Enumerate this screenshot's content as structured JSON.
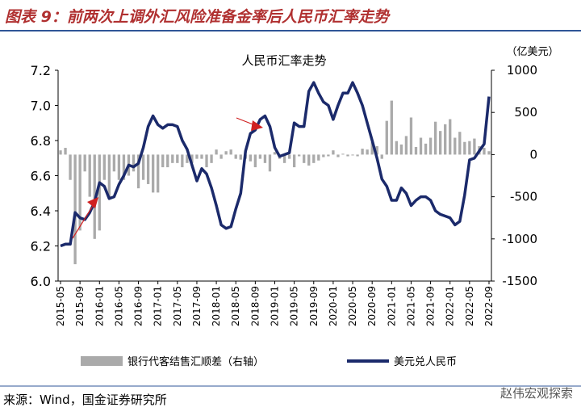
{
  "header": {
    "title": "图表 9：前两次上调外汇风险准备金率后人民币汇率走势"
  },
  "chart_data": {
    "type": "bar-line",
    "title": "人民币汇率走势",
    "y2_label": "（亿美元）",
    "categories": [
      "2015-05",
      null,
      null,
      null,
      "2015-09",
      null,
      null,
      null,
      "2016-01",
      null,
      null,
      null,
      "2016-05",
      null,
      null,
      null,
      "2016-09",
      null,
      null,
      null,
      "2017-01",
      null,
      null,
      null,
      "2017-05",
      null,
      null,
      null,
      "2017-09",
      null,
      null,
      null,
      "2018-01",
      null,
      null,
      null,
      "2018-05",
      null,
      null,
      null,
      "2018-09",
      null,
      null,
      null,
      "2019-01",
      null,
      null,
      null,
      "2019-05",
      null,
      null,
      null,
      "2019-09",
      null,
      null,
      null,
      "2020-01",
      null,
      null,
      null,
      "2020-05",
      null,
      null,
      null,
      "2020-09",
      null,
      null,
      null,
      "2021-01",
      null,
      null,
      null,
      "2021-05",
      null,
      null,
      null,
      "2021-09",
      null,
      null,
      null,
      "2022-01",
      null,
      null,
      null,
      "2022-05",
      null,
      null,
      null,
      "2022-09"
    ],
    "series": [
      {
        "name": "银行代客结售汇顺差（右轴）",
        "color": "#aaaaaa",
        "axis": "y2",
        "kind": "bar",
        "values": [
          50,
          80,
          -300,
          -1300,
          -900,
          -200,
          -500,
          -1000,
          -900,
          -300,
          -500,
          -200,
          -300,
          -300,
          -250,
          -200,
          -400,
          -300,
          -350,
          -450,
          -450,
          -150,
          -150,
          -100,
          -100,
          -150,
          -100,
          -100,
          -50,
          -50,
          -150,
          -100,
          60,
          -50,
          40,
          60,
          -50,
          -60,
          -50,
          -80,
          -150,
          -50,
          -100,
          -200,
          30,
          -50,
          -100,
          -50,
          -150,
          -20,
          -100,
          -130,
          -100,
          -70,
          -30,
          -20,
          50,
          -30,
          10,
          -20,
          -10,
          -20,
          70,
          60,
          150,
          100,
          -50,
          400,
          640,
          160,
          120,
          220,
          440,
          90,
          200,
          130,
          200,
          390,
          280,
          360,
          420,
          200,
          270,
          150,
          160,
          190,
          100,
          80,
          40
        ]
      },
      {
        "name": "美元兑人民币",
        "color": "#1b2a6b",
        "axis": "y",
        "kind": "line",
        "values": [
          6.2,
          6.21,
          6.21,
          6.39,
          6.36,
          6.35,
          6.39,
          6.45,
          6.56,
          6.54,
          6.47,
          6.48,
          6.55,
          6.6,
          6.66,
          6.65,
          6.67,
          6.76,
          6.88,
          6.94,
          6.89,
          6.87,
          6.89,
          6.89,
          6.88,
          6.8,
          6.75,
          6.66,
          6.57,
          6.64,
          6.61,
          6.53,
          6.43,
          6.32,
          6.3,
          6.31,
          6.41,
          6.5,
          6.74,
          6.84,
          6.86,
          6.92,
          6.94,
          6.88,
          6.76,
          6.71,
          6.72,
          6.73,
          6.9,
          6.88,
          6.88,
          7.08,
          7.13,
          7.07,
          7.02,
          7.0,
          6.92,
          7.0,
          7.07,
          7.07,
          7.13,
          7.07,
          7.0,
          6.9,
          6.8,
          6.7,
          6.58,
          6.54,
          6.46,
          6.46,
          6.53,
          6.5,
          6.43,
          6.46,
          6.48,
          6.48,
          6.46,
          6.4,
          6.38,
          6.37,
          6.36,
          6.32,
          6.34,
          6.49,
          6.69,
          6.7,
          6.74,
          6.78,
          7.05
        ]
      }
    ],
    "ylim": [
      6.0,
      7.2
    ],
    "yticks": [
      {
        "value": 6,
        "label": "6.0"
      },
      6.2,
      6.4,
      6.6,
      6.8,
      {
        "value": 7,
        "label": "7.0"
      },
      7.2
    ],
    "y2lim": [
      -1500,
      1000
    ],
    "y2ticks": [
      1000,
      500,
      0,
      -500,
      -1000,
      -1500
    ]
  },
  "source": "来源：Wind，国金证券研究所",
  "watermark": "赵伟宏观探索"
}
